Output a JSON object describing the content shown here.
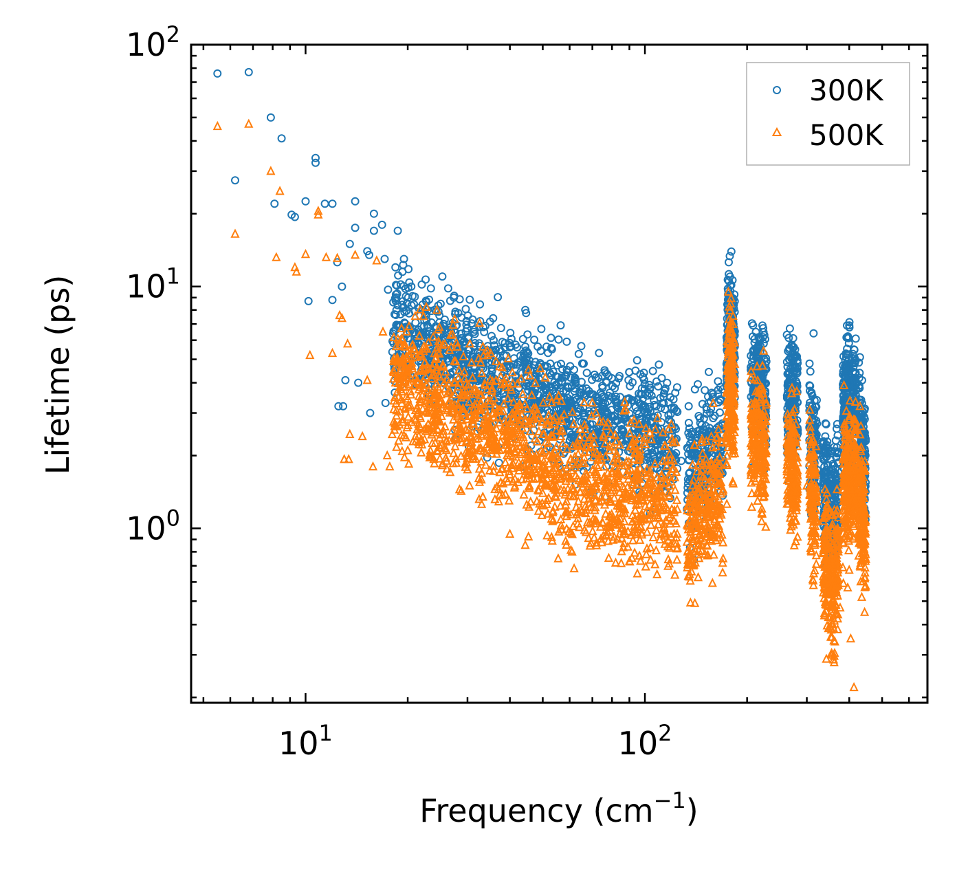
{
  "chart_data": {
    "type": "scatter",
    "title": "",
    "xlabel": "Frequency (cm",
    "xlabel_sup": "−1",
    "xlabel_close": ")",
    "ylabel": "Lifetime (ps)",
    "xscale": "log",
    "yscale": "log",
    "xlim": [
      4.6,
      680
    ],
    "ylim": [
      0.19,
      100
    ],
    "x_ticks": [
      {
        "value": 10,
        "base": "10",
        "exp": "1"
      },
      {
        "value": 100,
        "base": "10",
        "exp": "2"
      }
    ],
    "y_ticks": [
      {
        "value": 1,
        "base": "10",
        "exp": "0"
      },
      {
        "value": 10,
        "base": "10",
        "exp": "1"
      },
      {
        "value": 100,
        "base": "10",
        "exp": "2"
      }
    ],
    "legend_position": "top-right",
    "series": [
      {
        "name": "300K",
        "marker": "circle",
        "color": "#1f77b4",
        "points": [
          [
            5.5,
            76
          ],
          [
            6.8,
            77
          ],
          [
            6.2,
            27.5
          ],
          [
            7.9,
            50
          ],
          [
            8.5,
            41
          ],
          [
            8.1,
            22
          ],
          [
            9.1,
            19.8
          ],
          [
            9.3,
            19.4
          ],
          [
            10.0,
            22.5
          ],
          [
            10.2,
            8.7
          ],
          [
            10.7,
            34
          ],
          [
            10.7,
            32.5
          ],
          [
            11.4,
            22
          ],
          [
            12.0,
            22
          ],
          [
            12.4,
            12.6
          ],
          [
            12.8,
            10
          ],
          [
            13.1,
            4.1
          ],
          [
            12.0,
            8.8
          ],
          [
            12.5,
            3.2
          ],
          [
            12.9,
            3.2
          ],
          [
            13.5,
            15
          ],
          [
            14.0,
            22.5
          ],
          [
            14.0,
            17.5
          ],
          [
            14.3,
            4.0
          ],
          [
            15.2,
            14
          ],
          [
            15.4,
            13.5
          ],
          [
            15.5,
            3.0
          ],
          [
            15.9,
            20
          ],
          [
            15.9,
            17
          ],
          [
            16.8,
            18
          ],
          [
            17.1,
            13
          ],
          [
            17.2,
            3.3
          ],
          [
            17.5,
            9.7
          ],
          [
            18.4,
            12
          ],
          [
            18.7,
            17
          ],
          [
            19.3,
            11.5
          ],
          [
            19.5,
            13
          ],
          [
            19.7,
            9.8
          ],
          [
            20.1,
            11.8
          ],
          [
            20.5,
            10
          ],
          [
            21.0,
            7.9
          ],
          [
            22.0,
            10.2
          ],
          [
            23.5,
            7.1
          ],
          [
            25.3,
            11
          ],
          [
            27.6,
            7.7
          ],
          [
            30.2,
            6.1
          ],
          [
            33.4,
            6.8
          ],
          [
            35.7,
            7.4
          ],
          [
            38.0,
            5.9
          ],
          [
            42.0,
            5.6
          ],
          [
            48.0,
            4.5
          ],
          [
            57.0,
            4.0
          ],
          [
            66.0,
            4.8
          ],
          [
            72.0,
            3.5
          ],
          [
            83.0,
            3.3
          ],
          [
            95.0,
            3.4
          ],
          [
            108.0,
            3.2
          ],
          [
            118.0,
            2.8
          ],
          [
            128.0,
            1.9
          ],
          [
            140.0,
            1.45
          ],
          [
            155.0,
            2.6
          ],
          [
            168.0,
            1.9
          ],
          [
            176.0,
            9.6
          ],
          [
            179.0,
            8.6
          ],
          [
            210.0,
            5.5
          ],
          [
            222.0,
            6.9
          ],
          [
            266.0,
            5.0
          ],
          [
            277.0,
            4.6
          ],
          [
            314.0,
            6.4
          ],
          [
            340.0,
            2.4
          ],
          [
            357.0,
            1.0
          ],
          [
            386.0,
            4.0
          ],
          [
            394.0,
            6.9
          ],
          [
            430.0,
            5.1
          ],
          [
            445.0,
            2.4
          ]
        ]
      },
      {
        "name": "500K",
        "marker": "triangle",
        "color": "#ff7f0e",
        "points": [
          [
            5.5,
            46
          ],
          [
            6.2,
            16.5
          ],
          [
            6.8,
            47
          ],
          [
            7.9,
            30
          ],
          [
            8.4,
            24.8
          ],
          [
            8.2,
            13.2
          ],
          [
            9.3,
            12
          ],
          [
            9.4,
            11.5
          ],
          [
            10.0,
            13.6
          ],
          [
            10.3,
            5.2
          ],
          [
            10.9,
            20.5
          ],
          [
            10.9,
            19.8
          ],
          [
            11.5,
            13.2
          ],
          [
            12.0,
            5.3
          ],
          [
            12.4,
            13.1
          ],
          [
            12.6,
            7.6
          ],
          [
            12.8,
            7.4
          ],
          [
            13.0,
            1.93
          ],
          [
            13.3,
            5.8
          ],
          [
            13.4,
            1.93
          ],
          [
            13.5,
            2.45
          ],
          [
            14.0,
            13.5
          ],
          [
            14.7,
            2.4
          ],
          [
            15.2,
            4.1
          ],
          [
            15.8,
            1.8
          ],
          [
            16.2,
            12.8
          ],
          [
            16.9,
            6.5
          ],
          [
            17.4,
            2.0
          ],
          [
            17.7,
            1.8
          ],
          [
            18.4,
            4.0
          ],
          [
            19.4,
            4.4
          ],
          [
            20.0,
            2.1
          ],
          [
            21.8,
            2.3
          ],
          [
            23.0,
            3.0
          ],
          [
            24.8,
            2.2
          ],
          [
            26.0,
            1.9
          ],
          [
            27.9,
            3.0
          ],
          [
            30.0,
            1.75
          ],
          [
            33.3,
            1.35
          ],
          [
            35.4,
            3.7
          ],
          [
            37.6,
            1.55
          ],
          [
            42.3,
            1.55
          ],
          [
            47.0,
            1.6
          ],
          [
            55.5,
            0.75
          ],
          [
            58.4,
            1.25
          ],
          [
            61.0,
            0.8
          ],
          [
            63.5,
            1.1
          ],
          [
            72.0,
            0.85
          ],
          [
            82.0,
            0.72
          ],
          [
            95.0,
            0.65
          ],
          [
            108.0,
            1.3
          ],
          [
            120.0,
            1.2
          ],
          [
            135.0,
            0.78
          ],
          [
            150.0,
            0.95
          ],
          [
            170.0,
            0.75
          ],
          [
            176.0,
            5.5
          ],
          [
            179.0,
            5.4
          ],
          [
            181.0,
            3.7
          ],
          [
            209.0,
            2.9
          ],
          [
            214.0,
            2.5
          ],
          [
            222.0,
            4.7
          ],
          [
            266.0,
            2.7
          ],
          [
            277.0,
            1.4
          ],
          [
            300.0,
            1.5
          ],
          [
            314.0,
            1.7
          ],
          [
            335.0,
            0.92
          ],
          [
            356.0,
            0.3
          ],
          [
            376.0,
            0.47
          ],
          [
            386.0,
            3.9
          ],
          [
            404.0,
            0.35
          ],
          [
            413.0,
            0.22
          ],
          [
            430.0,
            3.2
          ],
          [
            444.0,
            0.45
          ]
        ]
      }
    ]
  }
}
